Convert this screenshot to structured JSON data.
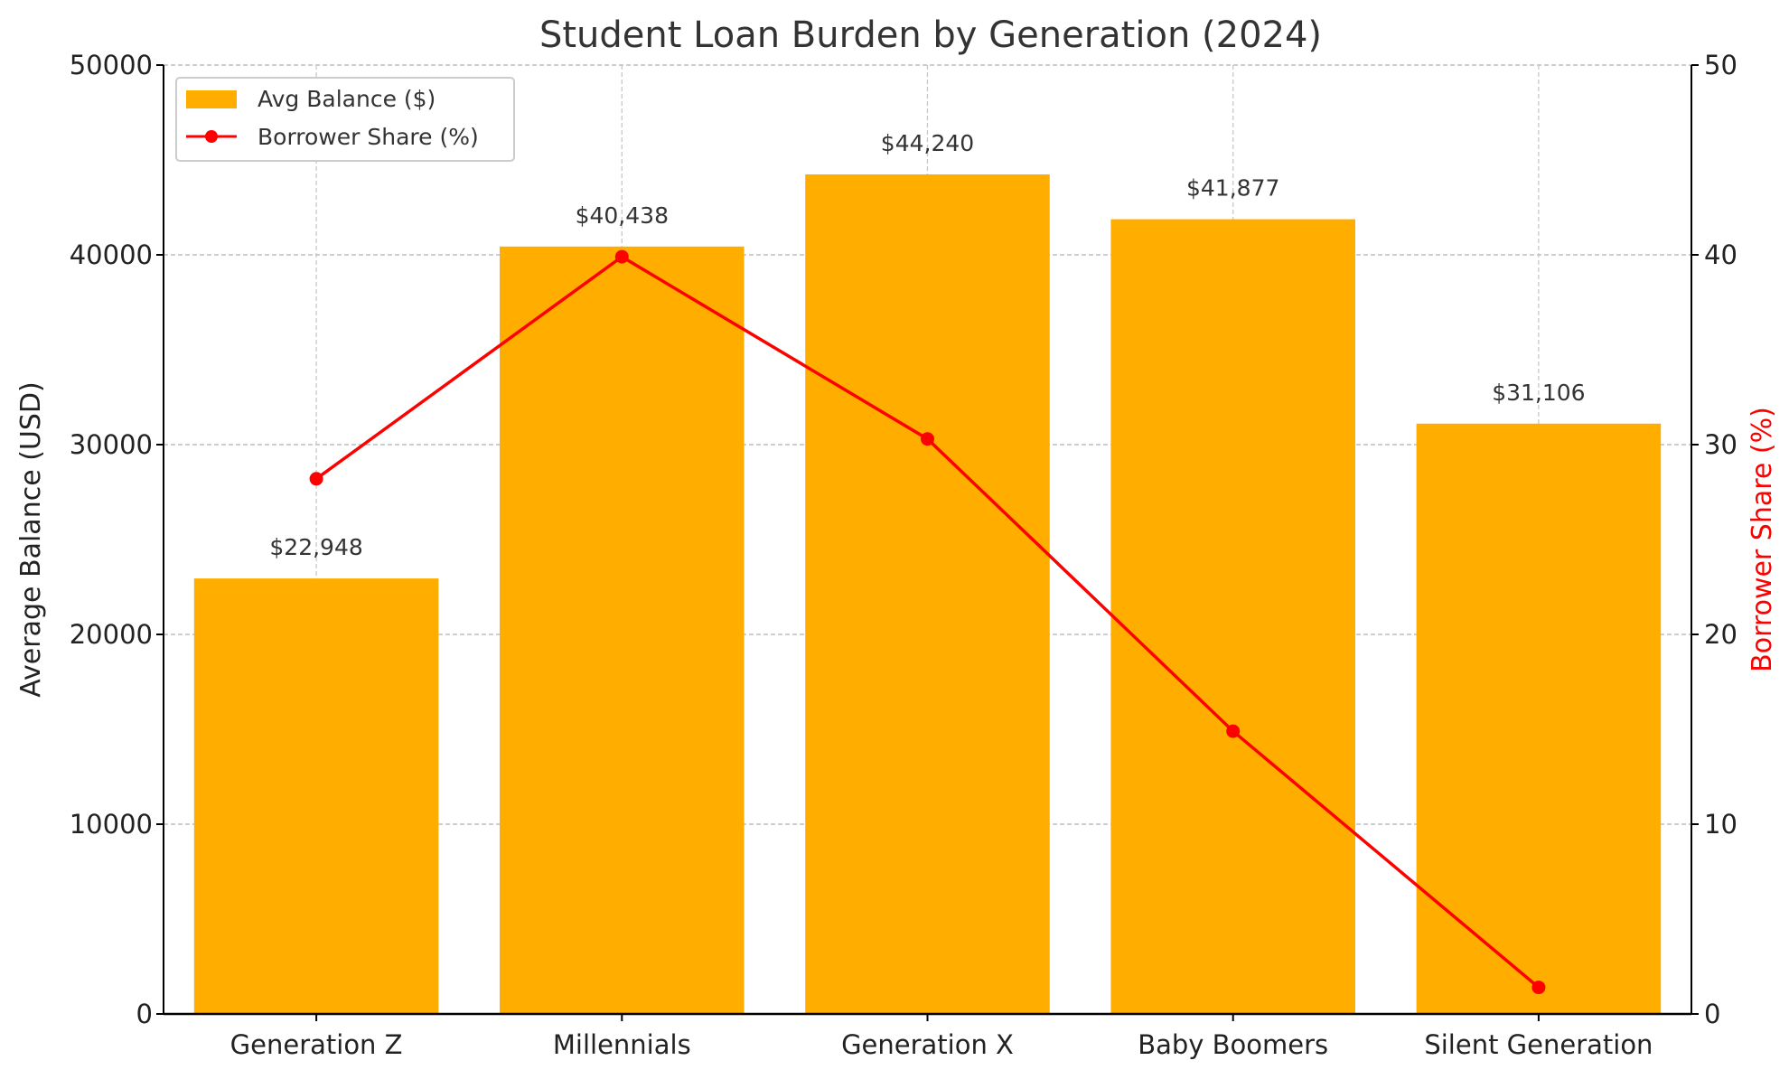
{
  "chart_data": {
    "type": "bar+line",
    "title": "Student Loan Burden by Generation (2024)",
    "categories": [
      "Generation Z",
      "Millennials",
      "Generation X",
      "Baby Boomers",
      "Silent Generation"
    ],
    "series": [
      {
        "name": "Avg Balance ($)",
        "type": "bar",
        "axis": "left",
        "color": "#FFAE00",
        "values": [
          22948,
          40438,
          44240,
          41877,
          31106
        ],
        "labels": [
          "$22,948",
          "$40,438",
          "$44,240",
          "$41,877",
          "$31,106"
        ]
      },
      {
        "name": "Borrower Share (%)",
        "type": "line",
        "axis": "right",
        "color": "#FF0000",
        "values": [
          28.2,
          39.9,
          30.3,
          14.9,
          1.4
        ]
      }
    ],
    "ylabel": "Average Balance (USD)",
    "y2label": "Borrower Share (%)",
    "ylim": [
      0,
      50000
    ],
    "y2lim": [
      0,
      50
    ],
    "yticks": [
      "0",
      "10000",
      "20000",
      "30000",
      "40000",
      "50000"
    ],
    "y2ticks": [
      "0",
      "10",
      "20",
      "30",
      "40",
      "50"
    ],
    "grid": true,
    "legend_position": "top-left"
  }
}
